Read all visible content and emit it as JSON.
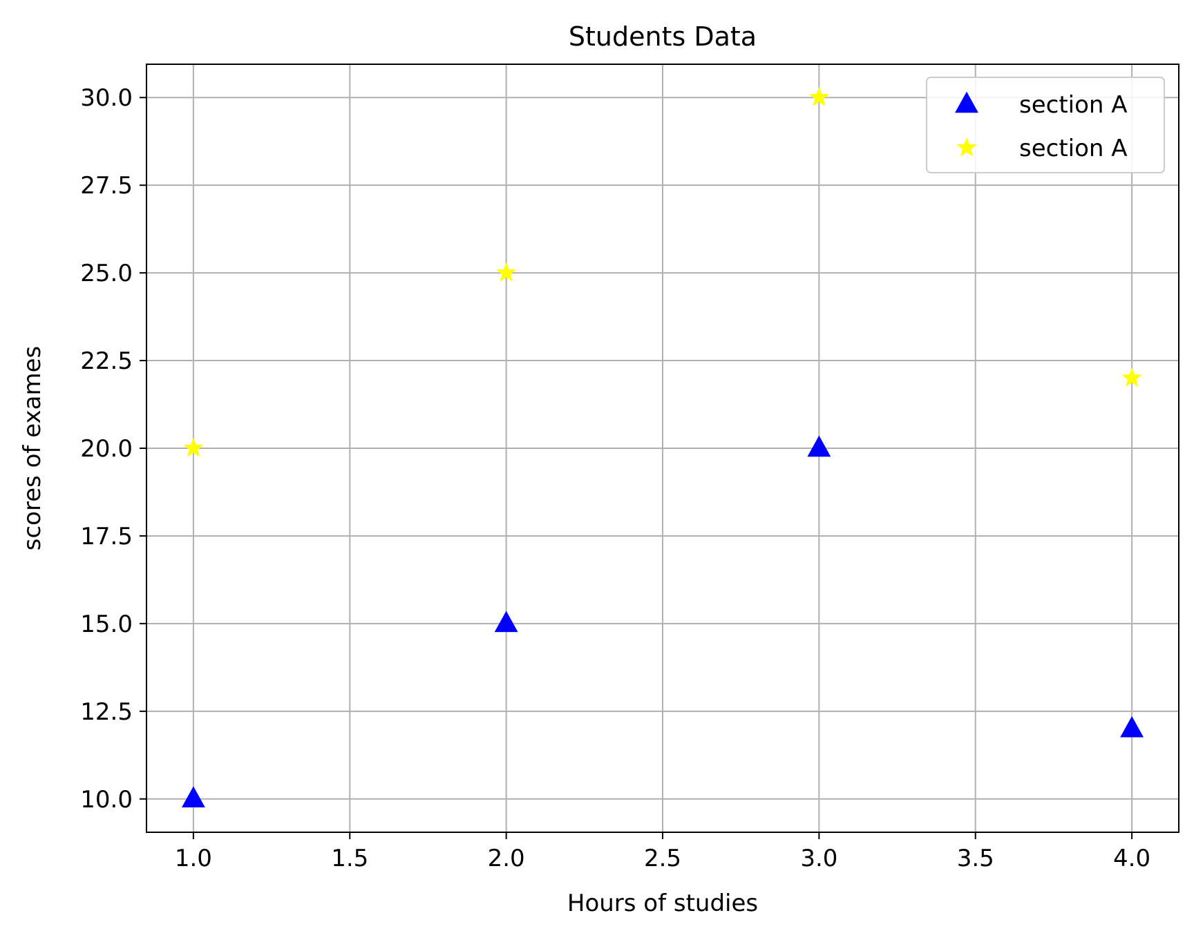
{
  "chart_data": {
    "type": "scatter",
    "title": "Students Data",
    "xlabel": "Hours of studies",
    "ylabel": "scores of exames",
    "xlim": [
      0.85,
      4.15
    ],
    "ylim": [
      9.05,
      30.95
    ],
    "xticks": [
      1.0,
      1.5,
      2.0,
      2.5,
      3.0,
      3.5,
      4.0
    ],
    "yticks": [
      10.0,
      12.5,
      15.0,
      17.5,
      20.0,
      22.5,
      25.0,
      27.5,
      30.0
    ],
    "xtick_labels": [
      "1.0",
      "1.5",
      "2.0",
      "2.5",
      "3.0",
      "3.5",
      "4.0"
    ],
    "ytick_labels": [
      "10.0",
      "12.5",
      "15.0",
      "17.5",
      "20.0",
      "22.5",
      "25.0",
      "27.5",
      "30.0"
    ],
    "grid": true,
    "legend": {
      "placement": "upper right",
      "entries": [
        "section A",
        "section A"
      ]
    },
    "series": [
      {
        "name": "section A",
        "marker": "triangle",
        "color": "#0000ff",
        "x": [
          1,
          2,
          3,
          4
        ],
        "y": [
          10,
          15,
          20,
          12
        ]
      },
      {
        "name": "section A",
        "marker": "star",
        "color": "#ffff00",
        "x": [
          1,
          2,
          3,
          4
        ],
        "y": [
          20,
          25,
          30,
          22
        ]
      }
    ]
  }
}
